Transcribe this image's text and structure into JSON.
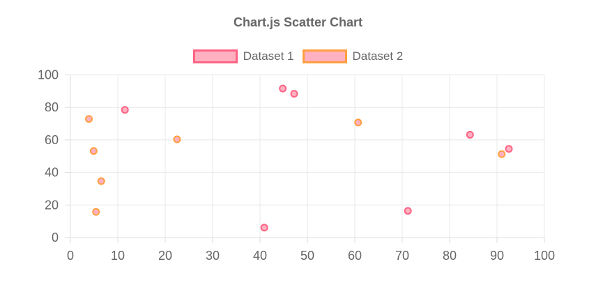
{
  "title": "Chart.js Scatter Chart",
  "legend": {
    "items": [
      {
        "label": "Dataset 1",
        "fill": "#FFB1C1",
        "border": "#FF6384"
      },
      {
        "label": "Dataset 2",
        "fill": "#FFB1C1",
        "border": "#FF9F40"
      }
    ]
  },
  "chart_data": {
    "type": "scatter",
    "title": "Chart.js Scatter Chart",
    "xlabel": "",
    "ylabel": "",
    "xlim": [
      0,
      100
    ],
    "ylim": [
      0,
      100
    ],
    "x_ticks": [
      0,
      10,
      20,
      30,
      40,
      50,
      60,
      70,
      80,
      90,
      100
    ],
    "y_ticks": [
      0,
      20,
      40,
      60,
      80,
      100
    ],
    "grid": true,
    "legend_position": "top",
    "series": [
      {
        "name": "Dataset 1",
        "point_fill": "#FFB1C1",
        "point_border": "#FF6384",
        "points": [
          {
            "x": 11.5,
            "y": 78.5
          },
          {
            "x": 40.9,
            "y": 6.1
          },
          {
            "x": 44.8,
            "y": 91.6
          },
          {
            "x": 47.2,
            "y": 88.4
          },
          {
            "x": 71.2,
            "y": 16.4
          },
          {
            "x": 84.3,
            "y": 63.2
          },
          {
            "x": 92.5,
            "y": 54.5
          }
        ]
      },
      {
        "name": "Dataset 2",
        "point_fill": "#FFB1C1",
        "point_border": "#FF9F40",
        "points": [
          {
            "x": 3.9,
            "y": 72.9
          },
          {
            "x": 4.9,
            "y": 53.2
          },
          {
            "x": 6.5,
            "y": 34.7
          },
          {
            "x": 5.4,
            "y": 15.8
          },
          {
            "x": 22.5,
            "y": 60.4
          },
          {
            "x": 60.7,
            "y": 70.7
          },
          {
            "x": 91.0,
            "y": 51.3
          }
        ]
      }
    ],
    "colors": {
      "grid": "#E8E8E8",
      "axis_border": "#DDDDDD",
      "tick_label": "#666666",
      "title": "#666666",
      "legend_label": "#666666"
    }
  }
}
